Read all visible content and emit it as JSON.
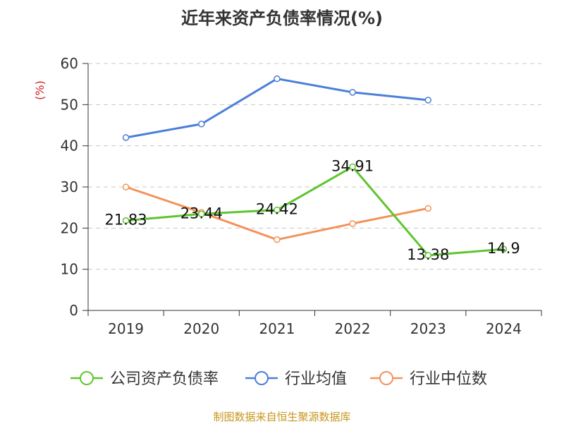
{
  "chart_data": {
    "type": "line",
    "title": "近年来资产负债率情况(%)",
    "ylabel": "(%)",
    "categories": [
      "2019",
      "2020",
      "2021",
      "2022",
      "2023",
      "2024"
    ],
    "ylim": [
      0,
      60
    ],
    "yticks": [
      0,
      10,
      20,
      30,
      40,
      50,
      60
    ],
    "grid": true,
    "legend_position": "bottom",
    "series": [
      {
        "name": "公司资产负债率",
        "color": "#5ec52e",
        "values": [
          21.83,
          23.44,
          24.42,
          34.91,
          13.38,
          14.9
        ],
        "labels": [
          "21.83",
          "23.44",
          "24.42",
          "34.91",
          "13.38",
          "14.9"
        ]
      },
      {
        "name": "行业均值",
        "color": "#4a7fd8",
        "values": [
          42.0,
          45.3,
          56.3,
          53.0,
          51.1,
          null
        ]
      },
      {
        "name": "行业中位数",
        "color": "#f4925a",
        "values": [
          30.0,
          23.8,
          17.2,
          21.1,
          24.8,
          null
        ]
      }
    ]
  },
  "source": "制图数据来自恒生聚源数据库"
}
